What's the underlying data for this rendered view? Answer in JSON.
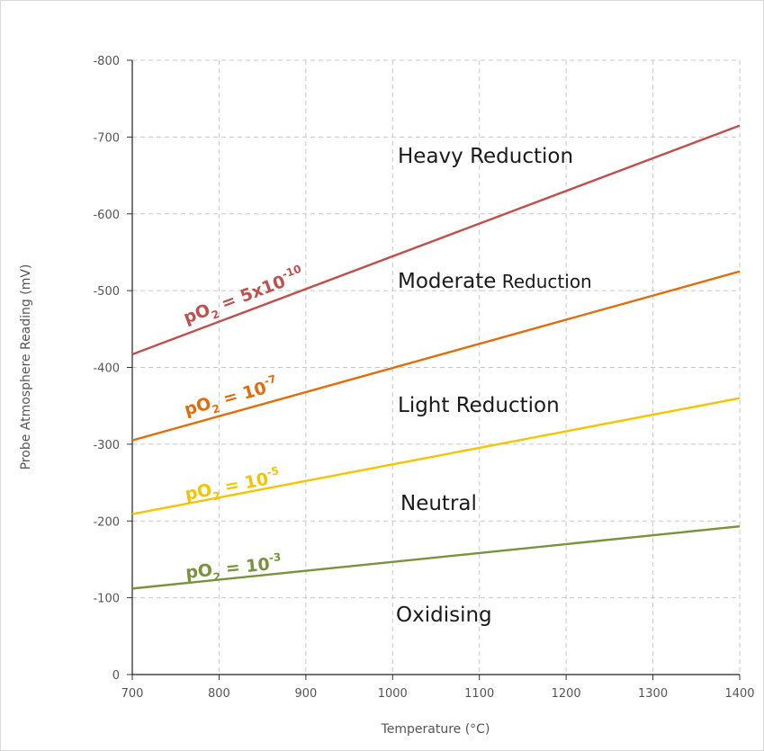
{
  "chart_data": {
    "type": "line",
    "xlabel": "Temperature (°C)",
    "ylabel": "Probe Atmosphere Reading (mV)",
    "xlim": [
      700,
      1400
    ],
    "ylim": [
      0,
      -800
    ],
    "x_ticks": [
      "700",
      "800",
      "900",
      "1000",
      "1100",
      "1200",
      "1300",
      "1400"
    ],
    "y_ticks": [
      "0",
      "-100",
      "-200",
      "-300",
      "-400",
      "-500",
      "-600",
      "-700",
      "-800"
    ],
    "grid": true,
    "series": [
      {
        "key": "pO2_5e-10",
        "label_base": "pO",
        "label_sub": "2",
        "label_mid": " = 5x10",
        "label_sup": "-10",
        "color": "#C0504D",
        "x": [
          700,
          1400
        ],
        "y": [
          -417,
          -715
        ]
      },
      {
        "key": "pO2_1e-7",
        "label_base": "pO",
        "label_sub": "2",
        "label_mid": " = 10",
        "label_sup": "-7",
        "color": "#E36C0A",
        "x": [
          700,
          1400
        ],
        "y": [
          -305,
          -525
        ]
      },
      {
        "key": "pO2_1e-5",
        "label_base": "pO",
        "label_sub": "2",
        "label_mid": " = 10",
        "label_sup": "-5",
        "color": "#F5C400",
        "x": [
          700,
          1400
        ],
        "y": [
          -209,
          -360
        ]
      },
      {
        "key": "pO2_1e-3",
        "label_base": "pO",
        "label_sub": "2",
        "label_mid": " = 10",
        "label_sup": "-3",
        "color": "#77933C",
        "x": [
          700,
          1400
        ],
        "y": [
          -112,
          -193
        ]
      }
    ],
    "regions": [
      {
        "key": "heavy",
        "text_a": "Heavy Reduction",
        "text_b": ""
      },
      {
        "key": "moderate",
        "text_a": "Moderate",
        "text_b": " Reduction"
      },
      {
        "key": "light",
        "text_a": "Light Reduction",
        "text_b": ""
      },
      {
        "key": "neutral",
        "text_a": "Neutral",
        "text_b": ""
      },
      {
        "key": "oxidising",
        "text_a": "Oxidising",
        "text_b": ""
      }
    ]
  }
}
